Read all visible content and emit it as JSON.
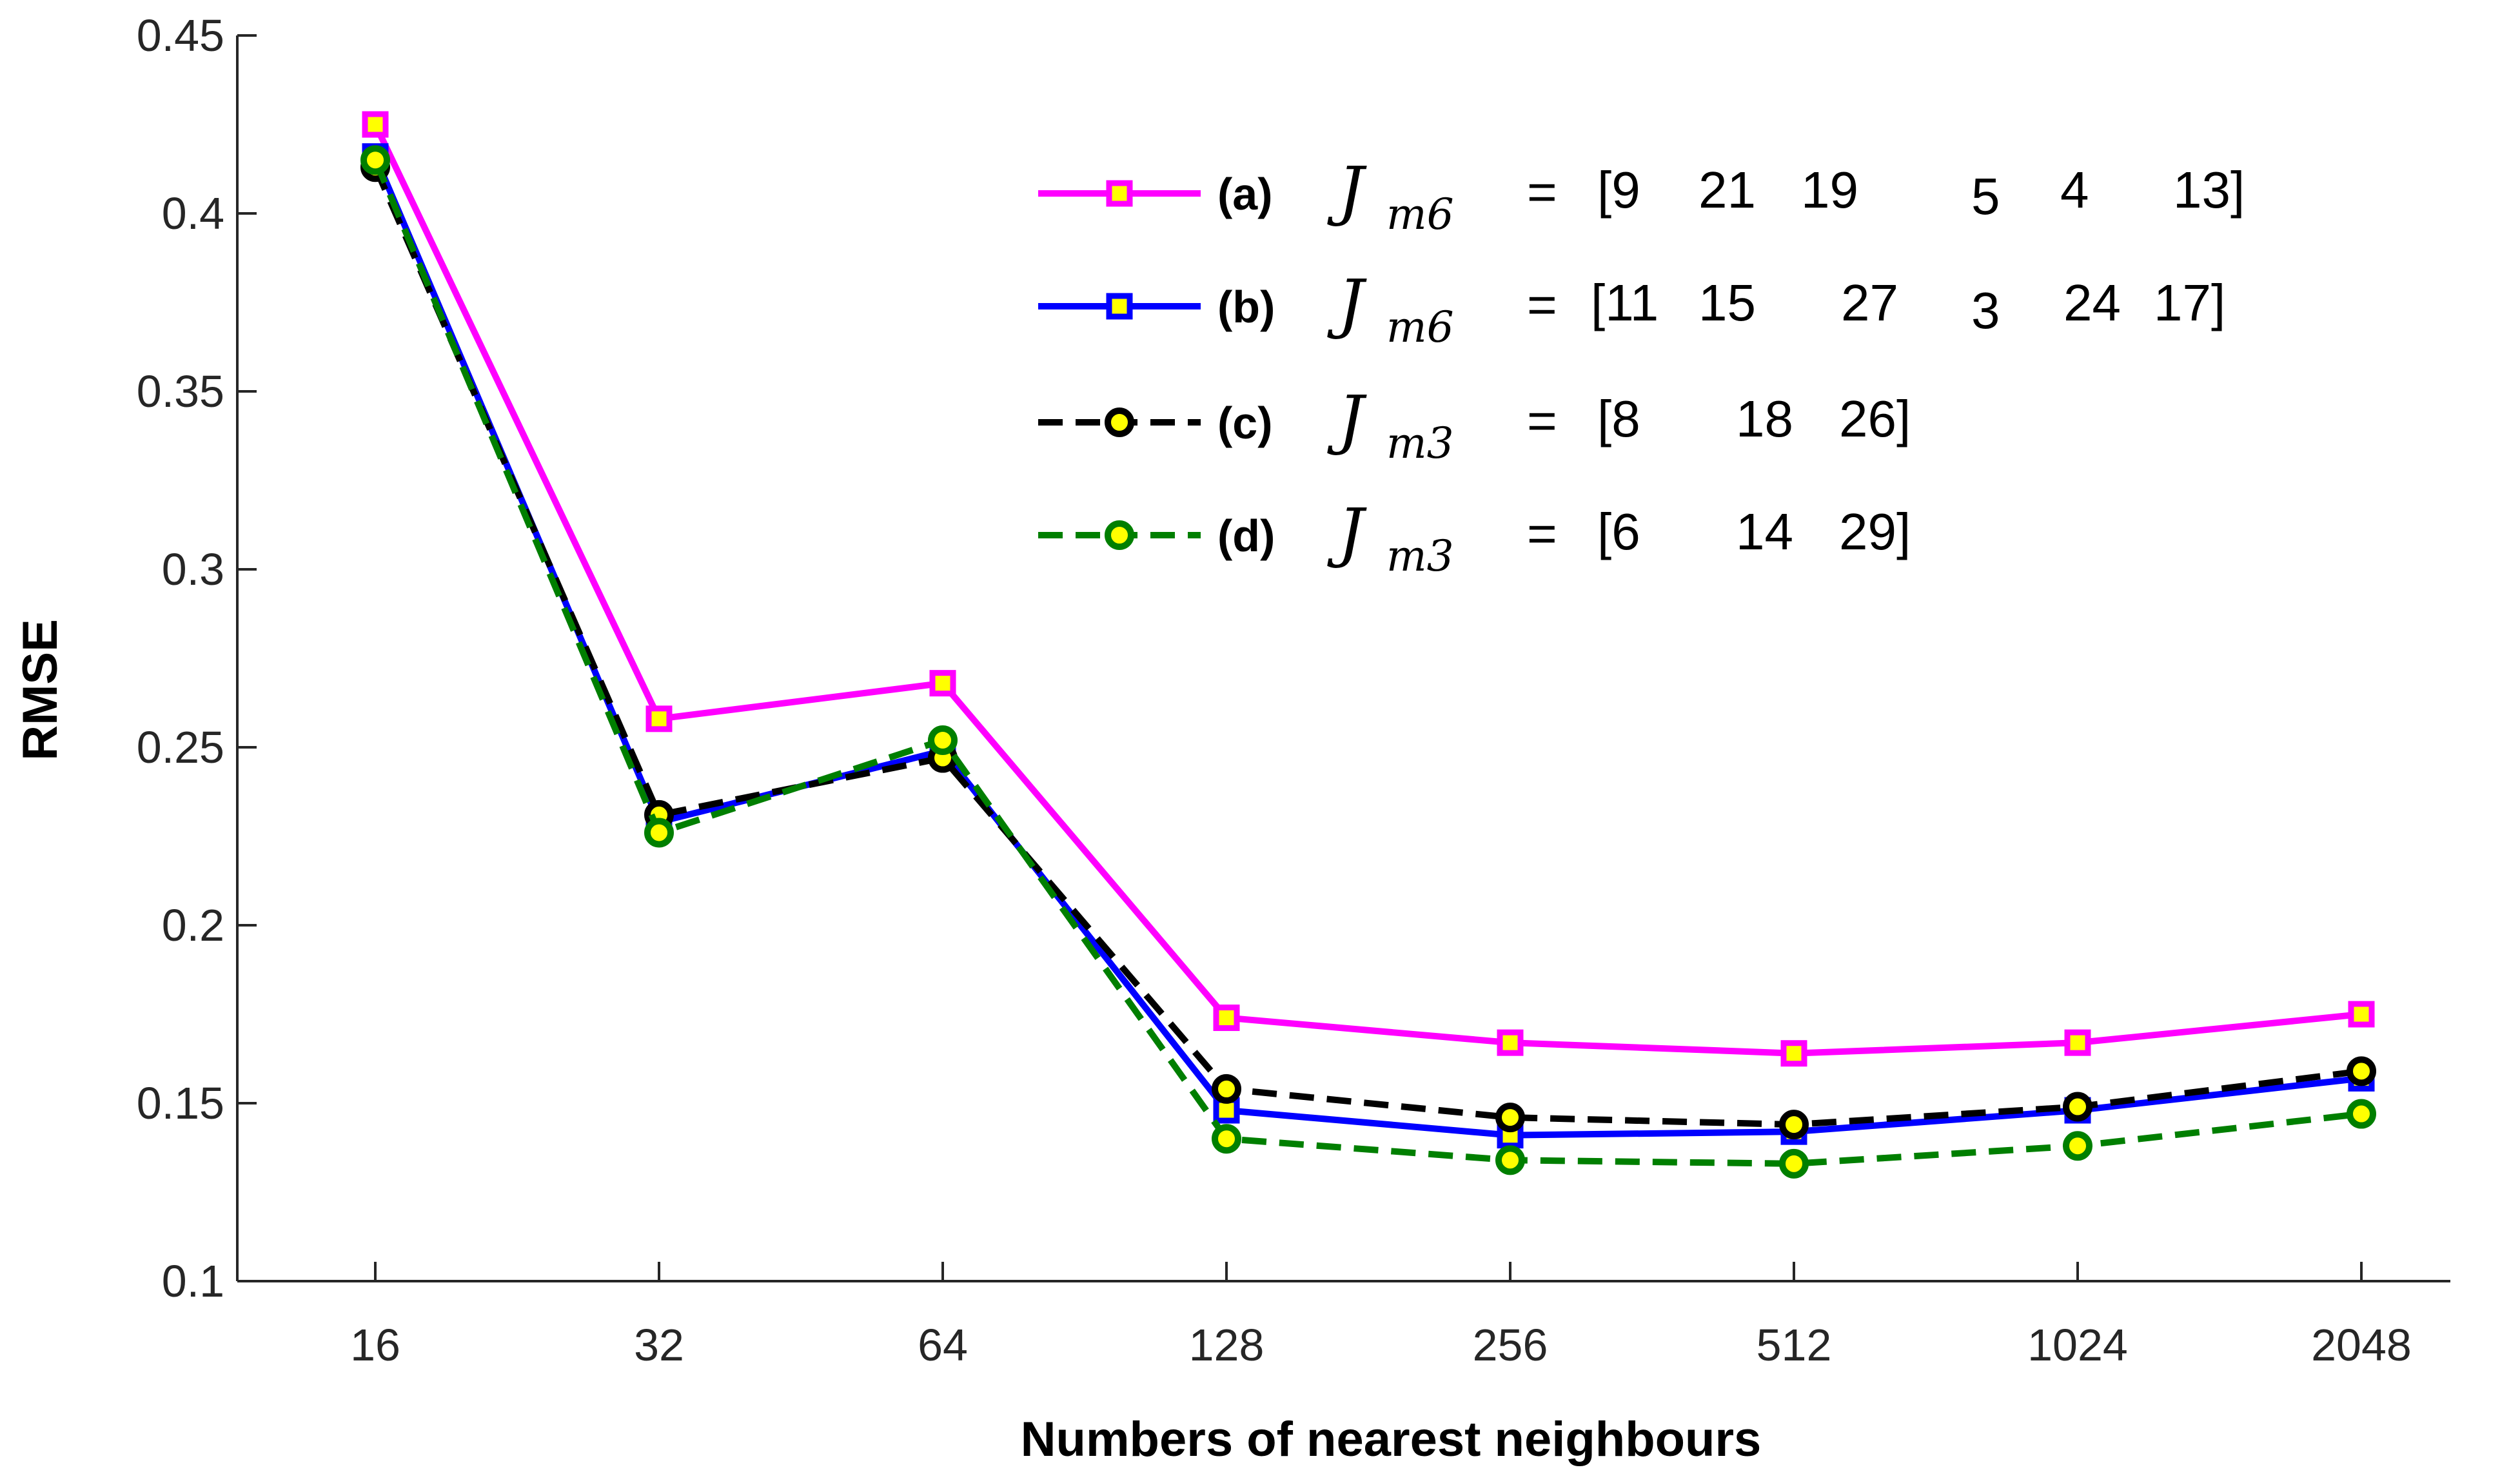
{
  "chart_data": {
    "type": "line",
    "title": "",
    "xlabel": "Numbers of nearest neighbours",
    "ylabel": "RMSE",
    "categories": [
      "16",
      "32",
      "64",
      "128",
      "256",
      "512",
      "1024",
      "2048"
    ],
    "ylim": [
      0.1,
      0.45
    ],
    "yticks": [
      "0.1",
      "0.15",
      "0.2",
      "0.25",
      "0.3",
      "0.35",
      "0.4",
      "0.45"
    ],
    "grid": false,
    "legend_position": "top-right",
    "series": [
      {
        "id": "a",
        "tag": "(a)",
        "symbol": "J",
        "subscript": "m6",
        "equals": "=",
        "vector": [
          "[9",
          "21",
          "19",
          "5",
          "4",
          "13]"
        ],
        "color": "#ff00ff",
        "dash": "solid",
        "marker": "square",
        "marker_fill": "#ffff00",
        "marker_edge": "#ff00ff",
        "values": [
          0.425,
          0.258,
          0.268,
          0.174,
          0.167,
          0.164,
          0.167,
          0.175
        ]
      },
      {
        "id": "b",
        "tag": "(b)",
        "symbol": "J",
        "subscript": "m6",
        "equals": "=",
        "vector": [
          "[11",
          "15",
          "27",
          "3",
          "24",
          "17]"
        ],
        "color": "#0000ff",
        "dash": "solid",
        "marker": "square",
        "marker_fill": "#ffff00",
        "marker_edge": "#0000ff",
        "values": [
          0.416,
          0.229,
          0.249,
          0.148,
          0.141,
          0.142,
          0.148,
          0.157
        ]
      },
      {
        "id": "c",
        "tag": "(c)",
        "symbol": "J",
        "subscript": "m3",
        "equals": "=",
        "vector": [
          "[8",
          "18",
          "26]"
        ],
        "color": "#000000",
        "dash": "dashed",
        "marker": "circle",
        "marker_fill": "#ffff00",
        "marker_edge": "#000000",
        "values": [
          0.413,
          0.231,
          0.247,
          0.154,
          0.146,
          0.144,
          0.149,
          0.159
        ]
      },
      {
        "id": "d",
        "tag": "(d)",
        "symbol": "J",
        "subscript": "m3",
        "equals": "=",
        "vector": [
          "[6",
          "14",
          "29]"
        ],
        "color": "#007f00",
        "dash": "dashed",
        "marker": "circle",
        "marker_fill": "#ffff00",
        "marker_edge": "#007f00",
        "values": [
          0.415,
          0.226,
          0.252,
          0.14,
          0.134,
          0.133,
          0.138,
          0.147
        ]
      }
    ]
  }
}
